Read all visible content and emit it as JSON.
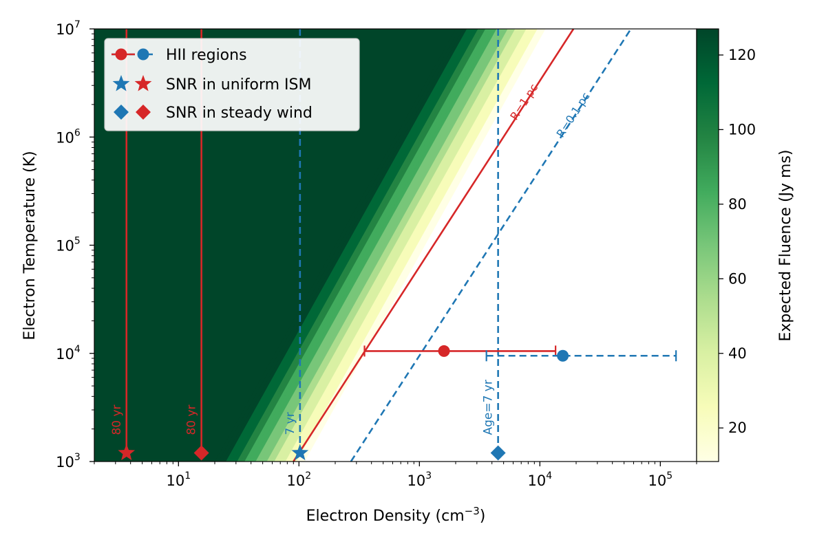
{
  "chart_data": {
    "type": "heatmap",
    "xlabel": "Electron Density (cm",
    "xlabel_sup": "−3",
    "xlabel_end": ")",
    "ylabel": "Electron Temperature (K)",
    "xscale": "log",
    "yscale": "log",
    "xlim": [
      2,
      200000
    ],
    "ylim": [
      1000,
      10000000
    ],
    "x_ticks": [
      {
        "value": 10,
        "base": "10",
        "exp": "1"
      },
      {
        "value": 100,
        "base": "10",
        "exp": "2"
      },
      {
        "value": 1000,
        "base": "10",
        "exp": "3"
      },
      {
        "value": 10000,
        "base": "10",
        "exp": "4"
      },
      {
        "value": 100000,
        "base": "10",
        "exp": "5"
      }
    ],
    "y_ticks": [
      {
        "value": 1000,
        "base": "10",
        "exp": "3"
      },
      {
        "value": 10000,
        "base": "10",
        "exp": "4"
      },
      {
        "value": 100000,
        "base": "10",
        "exp": "5"
      },
      {
        "value": 1000000,
        "base": "10",
        "exp": "6"
      },
      {
        "value": 10000000,
        "base": "10",
        "exp": "7"
      }
    ],
    "colorbar": {
      "label": "Expected Fluence (Jy ms)",
      "min": 11,
      "max": 127,
      "ticks": [
        "20",
        "40",
        "60",
        "80",
        "100",
        "120"
      ],
      "tick_values": [
        20,
        40,
        60,
        80,
        100,
        120
      ],
      "colormap": [
        "#ffffe5",
        "#f7fcb9",
        "#d9f0a3",
        "#addd8e",
        "#78c679",
        "#41ab5d",
        "#238443",
        "#006837",
        "#004529"
      ]
    },
    "heatmap": {
      "description": "fluence high (dark green) at low density / high temperature, dropping across a transition band parallel to radius lines",
      "transition_x_at_ymin": [
        20,
        110
      ],
      "slope_decades_y_per_x": 2
    },
    "radius_lines": [
      {
        "label": "R=1 pc",
        "color": "#d62728",
        "style": "solid",
        "x_at_ymin": 90,
        "x_at_ymax": 19000
      },
      {
        "label": "R=0.1 pc",
        "color": "#1f77b4",
        "style": "dashed",
        "x_at_ymin": 270,
        "x_at_ymax": 57000
      }
    ],
    "age_lines": [
      {
        "label": "80 yr",
        "color": "#d62728",
        "style": "solid",
        "x": 3.7,
        "marker": "star"
      },
      {
        "label": "80 yr",
        "color": "#d62728",
        "style": "solid",
        "x": 15.5,
        "marker": "diamond"
      },
      {
        "label": "7 yr",
        "color": "#1f77b4",
        "style": "dashed",
        "x": 102,
        "marker": "star"
      },
      {
        "label": "Age=7 yr",
        "color": "#1f77b4",
        "style": "dashed",
        "x": 4500,
        "marker": "diamond"
      }
    ],
    "hii_regions": [
      {
        "color": "#d62728",
        "style": "solid",
        "x": 1600,
        "y": 10500,
        "xerr": [
          350,
          13500
        ]
      },
      {
        "color": "#1f77b4",
        "style": "dashed",
        "x": 15500,
        "y": 9500,
        "xerr": [
          3600,
          135000
        ]
      }
    ],
    "marker_y": 1200,
    "legend": {
      "position": "upper-left",
      "entries": [
        {
          "label": "HII regions",
          "symbol": "circle-line"
        },
        {
          "label": "SNR in uniform ISM",
          "symbol": "star"
        },
        {
          "label": "SNR in steady wind",
          "symbol": "diamond"
        }
      ]
    },
    "colors": {
      "red": "#d62728",
      "blue": "#1f77b4"
    }
  }
}
